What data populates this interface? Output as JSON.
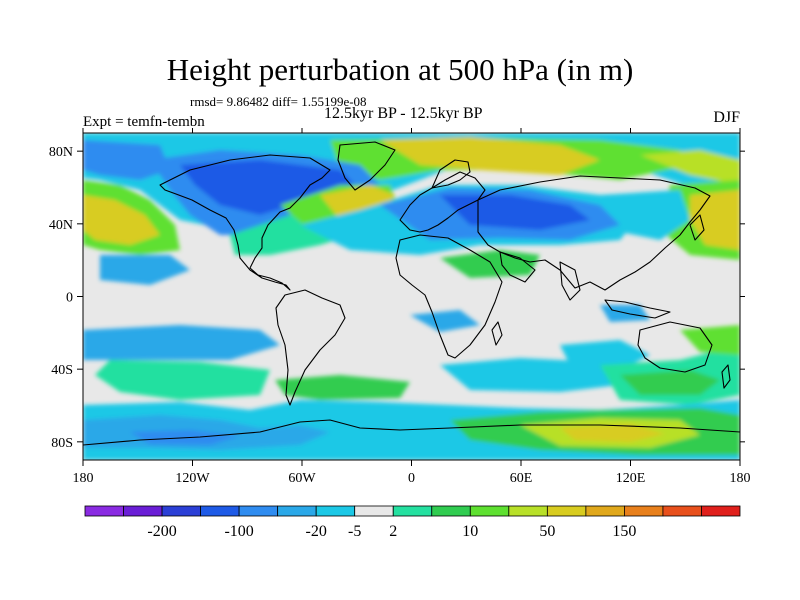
{
  "title": "Height perturbation at 500 hPa (in m)",
  "stats": "rmsd= 9.86482 diff= 1.55199e-08",
  "expt": "Expt = temfn-tembn",
  "period": "12.5kyr BP - 12.5kyr BP",
  "season": "DJF",
  "map": {
    "projection": "cylindrical equidistant",
    "lon_range": [
      -180,
      180
    ],
    "lat_range": [
      -90,
      90
    ],
    "x_ticks": [
      "180",
      "120W",
      "60W",
      "0",
      "60E",
      "120E",
      "180"
    ],
    "y_ticks": [
      "80N",
      "40N",
      "0",
      "40S",
      "80S"
    ],
    "background_color": "#e8e8e8",
    "coastline_color": "#000000"
  },
  "colorbar": {
    "colors": [
      "#8a2be2",
      "#6a1ed6",
      "#2b3fd6",
      "#1e5ae6",
      "#2f8cf0",
      "#2aa8e8",
      "#1cc8e6",
      "#e8e8e8",
      "#24e0a0",
      "#30cc50",
      "#5ee030",
      "#b8e028",
      "#d8cc20",
      "#e0a81c",
      "#e8801c",
      "#e8501c",
      "#e0201c"
    ],
    "labels": [
      "-200",
      "-100",
      "-20",
      "-5",
      "2",
      "10",
      "50",
      "150"
    ]
  }
}
